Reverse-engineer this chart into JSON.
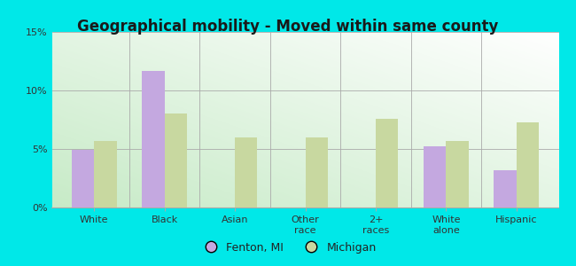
{
  "title": "Geographical mobility - Moved within same county",
  "categories": [
    "White",
    "Black",
    "Asian",
    "Other\nrace",
    "2+\nraces",
    "White\nalone",
    "Hispanic"
  ],
  "fenton_values": [
    4.9,
    11.7,
    0,
    0,
    0,
    5.2,
    3.2
  ],
  "michigan_values": [
    5.7,
    8.0,
    6.0,
    6.0,
    7.6,
    5.7,
    7.3
  ],
  "fenton_color": "#c4a8e0",
  "michigan_color": "#c8d8a0",
  "figure_bg": "#00e8e8",
  "plot_bg_topleft": "#c8e8c0",
  "plot_bg_topright": "#e8f4e8",
  "plot_bg_bottom": "#eef8ee",
  "ylim": [
    0,
    15
  ],
  "yticks": [
    0,
    5,
    10,
    15
  ],
  "ytick_labels": [
    "0%",
    "5%",
    "10%",
    "15%"
  ],
  "bar_width": 0.32,
  "legend_fenton": "Fenton, MI",
  "legend_michigan": "Michigan",
  "title_fontsize": 12,
  "tick_fontsize": 8,
  "legend_fontsize": 9
}
